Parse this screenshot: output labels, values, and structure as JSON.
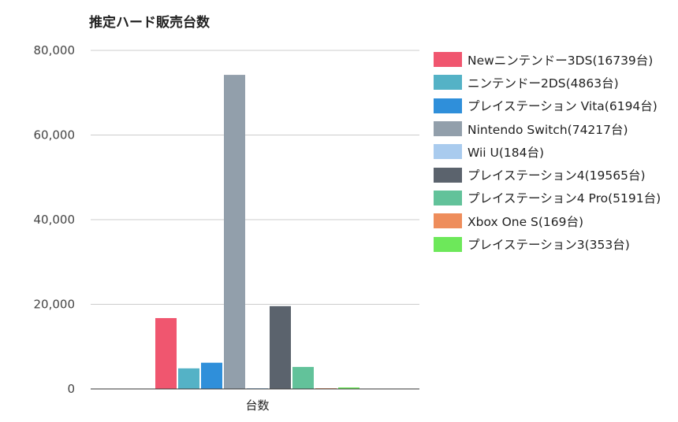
{
  "chart_data": {
    "type": "bar",
    "title": "推定ハード販売台数",
    "categories": [
      "台数"
    ],
    "xlabel": "",
    "ylabel": "",
    "ylim": [
      0,
      80000
    ],
    "yticks": [
      0,
      20000,
      40000,
      60000,
      80000
    ],
    "ytick_labels": [
      "0",
      "20,000",
      "40,000",
      "60,000",
      "80,000"
    ],
    "grid": true,
    "legend_position": "right",
    "series": [
      {
        "name": "Newニンテンドー3DS(16739台)",
        "values": [
          16739
        ],
        "color": "#f0566f"
      },
      {
        "name": "ニンテンドー2DS(4863台)",
        "values": [
          4863
        ],
        "color": "#54b2c6"
      },
      {
        "name": "プレイステーション Vita(6194台)",
        "values": [
          6194
        ],
        "color": "#2f8fda"
      },
      {
        "name": "Nintendo Switch(74217台)",
        "values": [
          74217
        ],
        "color": "#929fab"
      },
      {
        "name": "Wii U(184台)",
        "values": [
          184
        ],
        "color": "#a9cbee"
      },
      {
        "name": "プレイステーション4(19565台)",
        "values": [
          19565
        ],
        "color": "#5b636d"
      },
      {
        "name": "プレイステーション4 Pro(5191台)",
        "values": [
          5191
        ],
        "color": "#62c29a"
      },
      {
        "name": "Xbox One S(169台)",
        "values": [
          169
        ],
        "color": "#ee8d5b"
      },
      {
        "name": "プレイステーション3(353台)",
        "values": [
          353
        ],
        "color": "#6de85a"
      }
    ]
  }
}
